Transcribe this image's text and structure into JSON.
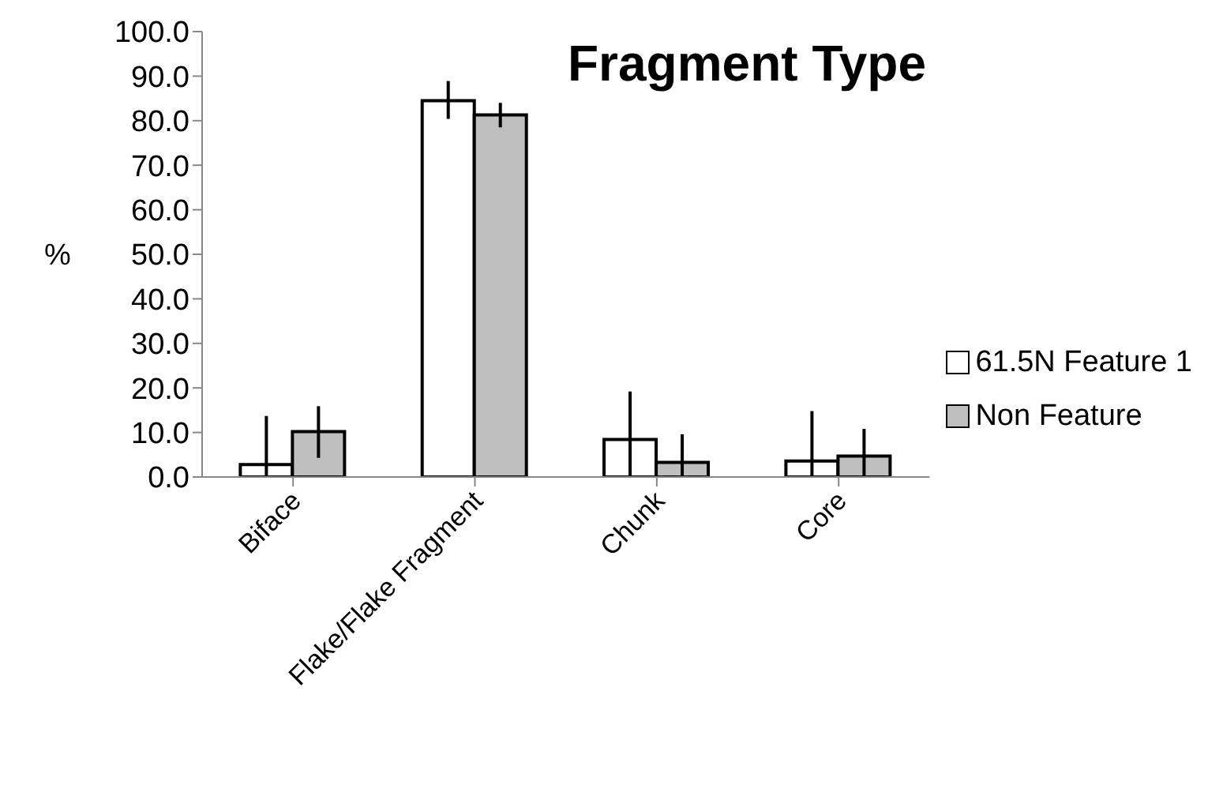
{
  "chart_data": {
    "type": "bar",
    "title": "Fragment Type",
    "ylabel": "%",
    "categories": [
      "Biface",
      "Flake/Flake Fragment",
      "Chunk",
      "Core"
    ],
    "series": [
      {
        "name": "61.5N Feature 1",
        "color": "#ffffff",
        "values": [
          2.8,
          84.5,
          8.4,
          3.6
        ],
        "errors": [
          [
            0,
            13.7
          ],
          [
            80.4,
            88.9
          ],
          [
            0,
            19.2
          ],
          [
            0,
            14.8
          ]
        ]
      },
      {
        "name": "Non Feature",
        "color": "#bfbfbf",
        "values": [
          10.2,
          81.3,
          3.3,
          4.7
        ],
        "errors": [
          [
            4.3,
            15.9
          ],
          [
            78.5,
            84.0
          ],
          [
            0,
            9.6
          ],
          [
            0,
            10.8
          ]
        ]
      }
    ],
    "ylim": [
      0,
      100
    ],
    "yticks": [
      {
        "value": 0,
        "label": "0.0"
      },
      {
        "value": 10,
        "label": "10.0"
      },
      {
        "value": 20,
        "label": "20.0"
      },
      {
        "value": 30,
        "label": "30.0"
      },
      {
        "value": 40,
        "label": "40.0"
      },
      {
        "value": 50,
        "label": "50.0"
      },
      {
        "value": 60,
        "label": "60.0"
      },
      {
        "value": 70,
        "label": "70.0"
      },
      {
        "value": 80,
        "label": "80.0"
      },
      {
        "value": 90,
        "label": "90.0"
      },
      {
        "value": 100,
        "label": "100.0"
      }
    ],
    "grid": false,
    "legend": "right"
  }
}
